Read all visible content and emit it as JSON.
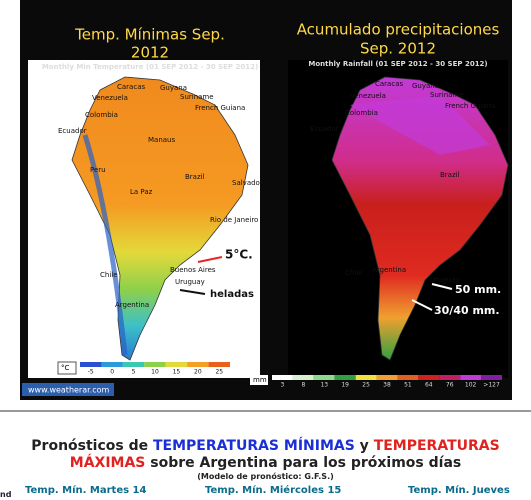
{
  "panels": [
    {
      "title": [
        "Temp. Mínimas Sep.",
        "2012"
      ],
      "subtitle": "Monthly Min Temperature (01 SEP 2012 - 30 SEP 2012)",
      "places": [
        "Caracas",
        "Guyana",
        "Suriname",
        "French Guiana",
        "Venezuela",
        "Colombia",
        "Ecuador",
        "Manaus",
        "Brazil",
        "Peru",
        "La Paz",
        "Salvador",
        "Rio de Janeiro",
        "Chile",
        "Buenos Aires",
        "Uruguay",
        "Argentina"
      ],
      "annotations": [
        "5°C.",
        "heladas"
      ],
      "legend": {
        "unit": "°C",
        "ticks": [
          "-5",
          "0",
          "5",
          "10",
          "15",
          "20",
          "25"
        ]
      }
    },
    {
      "title": [
        "Acumulado precipitaciones",
        "Sep. 2012"
      ],
      "subtitle": "Monthly Rainfall (01 SEP 2012 - 30 SEP 2012)",
      "places": [
        "Caracas",
        "Guyana",
        "Suriname",
        "French Guiana",
        "Venezuela",
        "Colombia",
        "Ecuador",
        "Brazil",
        "Chile",
        "Uruguay",
        "Argentina"
      ],
      "annotations": [
        "50 mm.",
        "30/40 mm."
      ],
      "legend": {
        "unit": "mm",
        "ticks": [
          "3",
          "8",
          "13",
          "19",
          "25",
          "38",
          "51",
          "64",
          "76",
          "102",
          ">127"
        ]
      }
    }
  ],
  "credit": "www.weatherar.com",
  "forecast": {
    "heading": [
      "Pronósticos de ",
      "TEMPERATURAS MÍNIMAS",
      " y ",
      "TEMPERATURAS",
      "MÁXIMAS",
      " sobre Argentina para los próximos días"
    ],
    "model": "(Modelo de pronóstico: G.F.S.)",
    "columns": [
      "Temp. Mín. Martes 14",
      "Temp. Mín. Miércoles 15",
      "Temp. Mín. Jueves"
    ],
    "edge": "nd"
  }
}
